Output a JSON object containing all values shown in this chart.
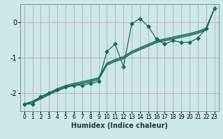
{
  "xlabel": "Humidex (Indice chaleur)",
  "background_color": "#cce8e8",
  "grid_color": "#c0a8a8",
  "line_color": "#1a6b5a",
  "xlim": [
    -0.5,
    23.5
  ],
  "ylim": [
    -2.5,
    0.5
  ],
  "yticks": [
    0,
    -1,
    -2
  ],
  "xticks": [
    0,
    1,
    2,
    3,
    4,
    5,
    6,
    7,
    8,
    9,
    10,
    11,
    12,
    13,
    14,
    15,
    16,
    17,
    18,
    19,
    20,
    21,
    22,
    23
  ],
  "x_data": [
    0,
    1,
    2,
    3,
    4,
    5,
    6,
    7,
    8,
    9,
    10,
    11,
    12,
    13,
    14,
    15,
    16,
    17,
    18,
    19,
    20,
    21,
    22,
    23
  ],
  "y_main": [
    -2.3,
    -2.3,
    -2.1,
    -2.0,
    -1.9,
    -1.82,
    -1.77,
    -1.77,
    -1.72,
    -1.67,
    -0.82,
    -0.62,
    -1.25,
    -0.05,
    0.1,
    -0.12,
    -0.48,
    -0.62,
    -0.52,
    -0.57,
    -0.57,
    -0.45,
    -0.18,
    0.38
  ],
  "y_line1": [
    -2.3,
    -2.22,
    -2.1,
    -1.98,
    -1.87,
    -1.78,
    -1.72,
    -1.67,
    -1.62,
    -1.56,
    -1.15,
    -1.05,
    -0.97,
    -0.82,
    -0.72,
    -0.62,
    -0.52,
    -0.47,
    -0.42,
    -0.37,
    -0.32,
    -0.26,
    -0.17,
    0.38
  ],
  "y_line2": [
    -2.3,
    -2.24,
    -2.13,
    -2.01,
    -1.9,
    -1.81,
    -1.75,
    -1.7,
    -1.65,
    -1.59,
    -1.18,
    -1.08,
    -1.0,
    -0.85,
    -0.75,
    -0.65,
    -0.55,
    -0.5,
    -0.45,
    -0.4,
    -0.35,
    -0.29,
    -0.2,
    0.38
  ],
  "y_line3": [
    -2.3,
    -2.26,
    -2.16,
    -2.04,
    -1.93,
    -1.84,
    -1.78,
    -1.73,
    -1.68,
    -1.62,
    -1.21,
    -1.11,
    -1.03,
    -0.88,
    -0.78,
    -0.68,
    -0.58,
    -0.53,
    -0.48,
    -0.43,
    -0.38,
    -0.32,
    -0.23,
    0.38
  ]
}
